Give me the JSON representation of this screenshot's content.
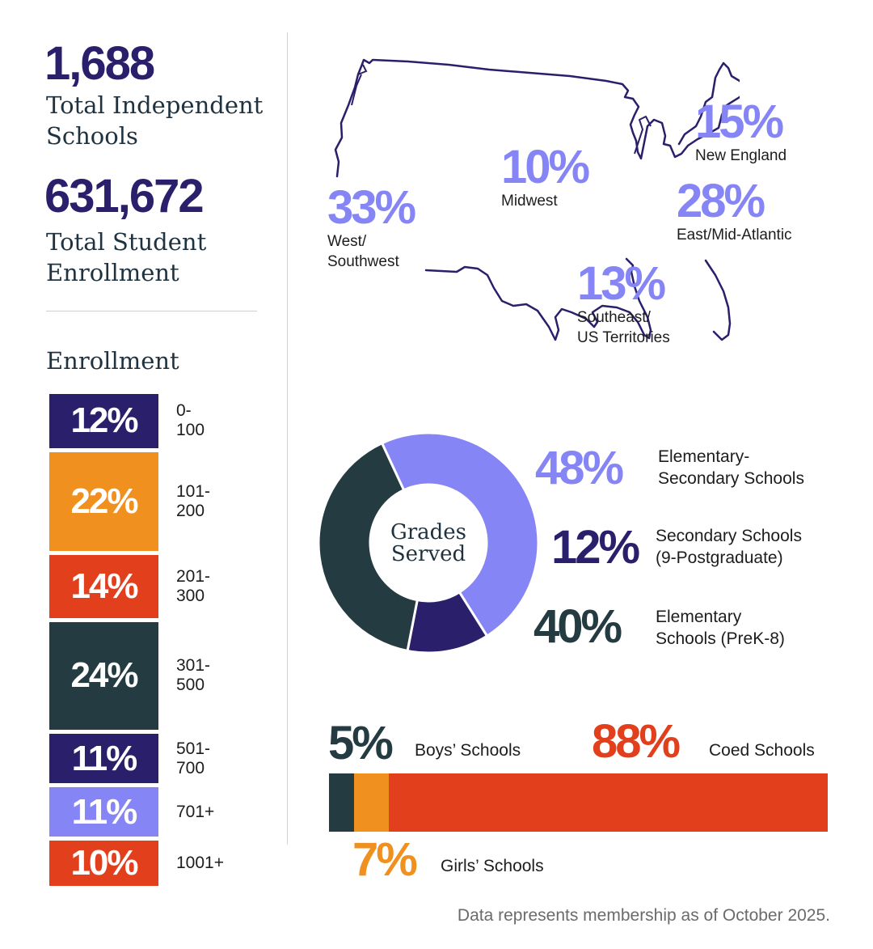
{
  "stats": {
    "schools_value": "1,688",
    "schools_label_line1": "Total Independent",
    "schools_label_line2": "Schools",
    "enrollment_value": "631,672",
    "enrollment_label_line1": "Total Student",
    "enrollment_label_line2": "Enrollment"
  },
  "colors": {
    "navy": "#2a1f6b",
    "orange": "#f0901e",
    "red": "#e23f1d",
    "dark_teal": "#233b41",
    "lavender": "#8585f5"
  },
  "chart_data": [
    {
      "type": "bar",
      "title": "Enrollment",
      "categories": [
        "0-100",
        "101-200",
        "201-300",
        "301-500",
        "501-700",
        "701+",
        "1001+"
      ],
      "values": [
        12,
        22,
        14,
        24,
        11,
        11,
        10
      ],
      "value_labels": [
        "12%",
        "22%",
        "14%",
        "24%",
        "11%",
        "11%",
        "10%"
      ],
      "colors": [
        "#2a1f6b",
        "#f0901e",
        "#e23f1d",
        "#233b41",
        "#2a1f6b",
        "#8585f5",
        "#e23f1d"
      ],
      "orientation": "stacked-vertical"
    },
    {
      "type": "pie",
      "title": "Grades Served",
      "title_line1": "Grades",
      "title_line2": "Served",
      "slices": [
        {
          "value": 48,
          "label_value": "48%",
          "label_line1": "Elementary-",
          "label_line2": "Secondary Schools",
          "color": "#8585f5"
        },
        {
          "value": 12,
          "label_value": "12%",
          "label_line1": "Secondary Schools",
          "label_line2": "(9-Postgraduate)",
          "color": "#2a1f6b"
        },
        {
          "value": 40,
          "label_value": "40%",
          "label_line1": "Elementary",
          "label_line2": "Schools (PreK-8)",
          "color": "#233b41"
        }
      ]
    },
    {
      "type": "bar",
      "orientation": "stacked-horizontal",
      "segments": [
        {
          "value": 5,
          "label_value": "5%",
          "label": "Boys’ Schools",
          "color": "#233b41"
        },
        {
          "value": 7,
          "label_value": "7%",
          "label": "Girls’ Schools",
          "color": "#f0901e"
        },
        {
          "value": 88,
          "label_value": "88%",
          "label": "Coed Schools",
          "color": "#e23f1d"
        }
      ]
    }
  ],
  "map": {
    "regions": [
      {
        "value": 33,
        "pct": "33%",
        "line1": "West/",
        "line2": "Southwest"
      },
      {
        "value": 10,
        "pct": "10%",
        "line1": "Midwest",
        "line2": ""
      },
      {
        "value": 15,
        "pct": "15%",
        "line1": "New England",
        "line2": ""
      },
      {
        "value": 28,
        "pct": "28%",
        "line1": "East/Mid-Atlantic",
        "line2": ""
      },
      {
        "value": 13,
        "pct": "13%",
        "line1": "Southeast/",
        "line2": "US Territories"
      }
    ]
  },
  "footnote": "Data represents membership as of October 2025."
}
